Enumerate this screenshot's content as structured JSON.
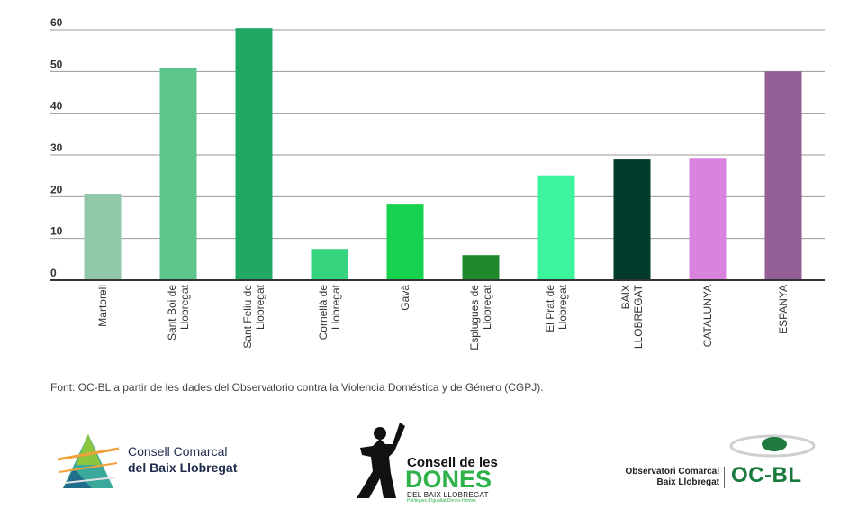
{
  "chart_data": {
    "type": "bar",
    "categories": [
      [
        "Martorell"
      ],
      [
        "Sant Boi de",
        "Llobregat"
      ],
      [
        "Sant Feliu de",
        "Llobregat"
      ],
      [
        "Cornellà de",
        "Llobregat"
      ],
      [
        "Gavà"
      ],
      [
        "Esplugues de",
        "Llobregat"
      ],
      [
        "El Prat de",
        "Llobregat"
      ],
      [
        "BAIX",
        "LLOBREGAT"
      ],
      [
        "CATALUNYA"
      ],
      [
        "ESPANYA"
      ]
    ],
    "values": [
      20.7,
      50.8,
      60.4,
      7.5,
      18.1,
      6.0,
      25.1,
      28.9,
      29.3,
      50.0
    ],
    "colors": [
      "#8fc7a8",
      "#5bc58b",
      "#21a862",
      "#36d47f",
      "#16d24f",
      "#1f8a2c",
      "#3af59b",
      "#003b2b",
      "#da83de",
      "#945f95"
    ],
    "ylim": [
      0,
      60
    ],
    "yticks": [
      0,
      10,
      20,
      30,
      40,
      50,
      60
    ],
    "grid": true,
    "legend": "none"
  },
  "source_text": "Font: OC-BL a partir de les dades del Observatorio contra la Violencia Doméstica y de Género (CGPJ).",
  "logos": {
    "ccbl": {
      "line1": "Consell Comarcal",
      "line2": "del Baix Llobregat"
    },
    "dones": {
      "line1": "Consell de les",
      "line2": "DONES",
      "line3": "DEL BAIX LLOBREGAT",
      "line4": "Polítiques d'Igualtat Dones-Homes"
    },
    "ocbl": {
      "sub1": "Observatori Comarcal",
      "sub2": "Baix Llobregat",
      "main": "OC-BL"
    }
  }
}
